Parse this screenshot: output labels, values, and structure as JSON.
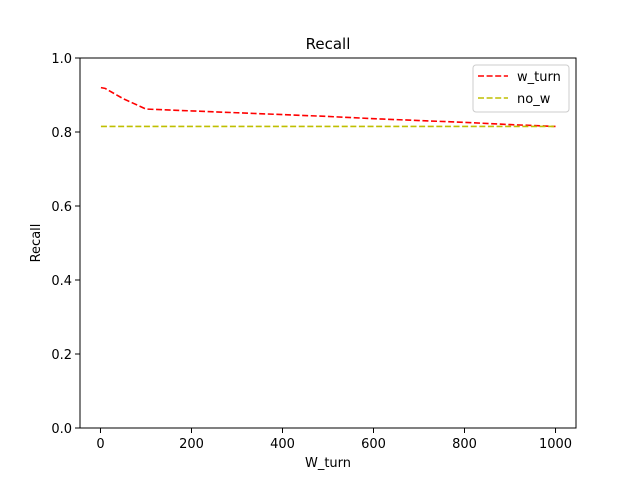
{
  "chart_data": {
    "type": "line",
    "title": "Recall",
    "xlabel": "W_turn",
    "ylabel": "Recall",
    "xlim": [
      -45,
      1045
    ],
    "ylim": [
      0.0,
      1.0
    ],
    "xticks": [
      0,
      200,
      400,
      600,
      800,
      1000
    ],
    "xtick_labels": [
      "0",
      "200",
      "400",
      "600",
      "800",
      "1000"
    ],
    "yticks": [
      0.0,
      0.2,
      0.4,
      0.6,
      0.8,
      1.0
    ],
    "ytick_labels": [
      "0.0",
      "0.2",
      "0.4",
      "0.6",
      "0.8",
      "1.0"
    ],
    "grid": false,
    "legend_position": "top-right",
    "series": [
      {
        "name": "w_turn",
        "color": "#ff0000",
        "linestyle": "dashed",
        "x": [
          1,
          10,
          50,
          100,
          200,
          300,
          400,
          500,
          600,
          700,
          800,
          900,
          1000
        ],
        "values": [
          0.92,
          0.918,
          0.89,
          0.862,
          0.857,
          0.852,
          0.847,
          0.842,
          0.836,
          0.831,
          0.826,
          0.82,
          0.815
        ]
      },
      {
        "name": "no_w",
        "color": "#bfbf00",
        "linestyle": "dashed",
        "x": [
          1,
          1000
        ],
        "values": [
          0.815,
          0.815
        ]
      }
    ]
  }
}
